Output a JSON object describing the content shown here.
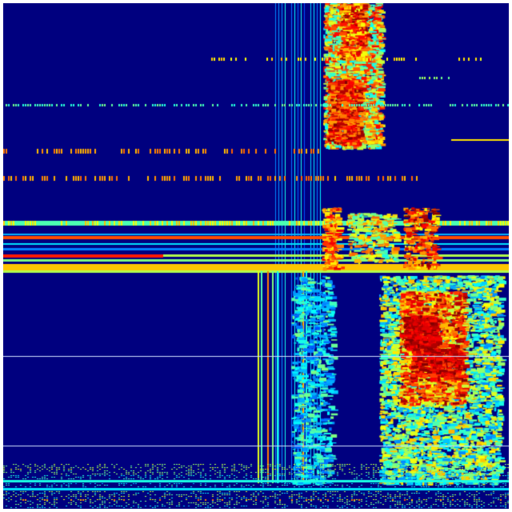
{
  "image": {
    "kind": "heatmap",
    "colormap": "jet",
    "colors": {
      "low": "#00007f",
      "mid_low": "#0060ff",
      "mid": "#00e0ff",
      "mid_high": "#e0ff20",
      "high": "#ff6000",
      "max": "#8f0000"
    }
  }
}
